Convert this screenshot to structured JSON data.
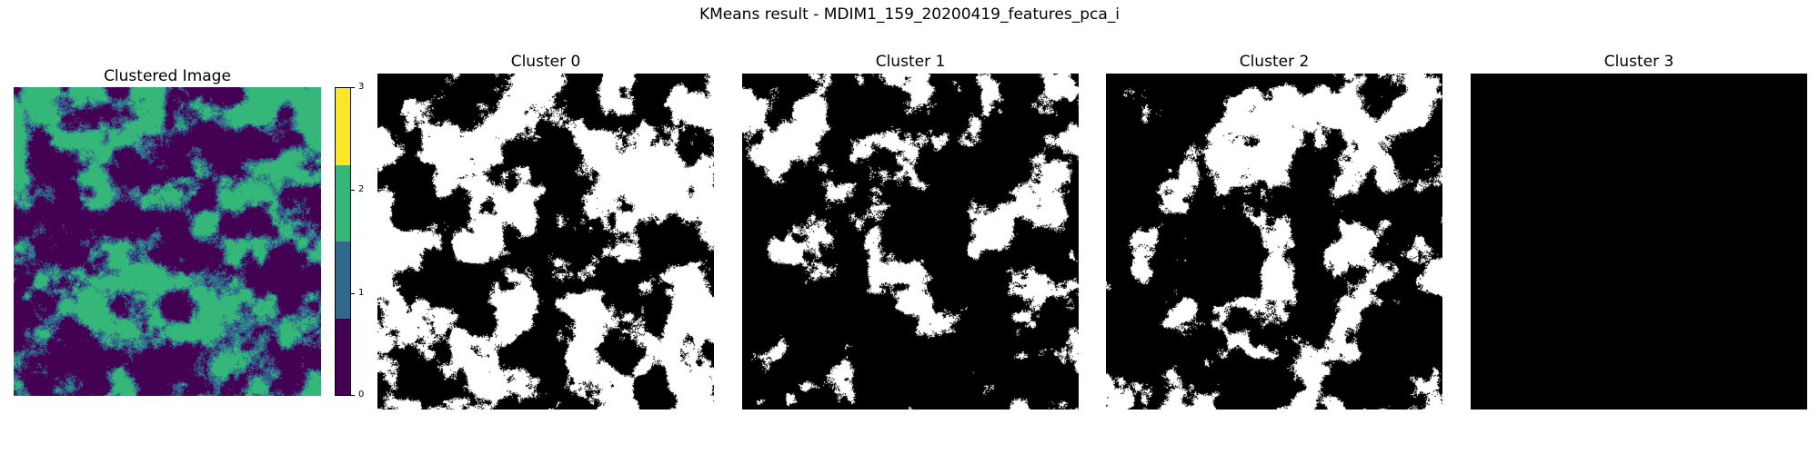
{
  "figure": {
    "suptitle": "KMeans result - MDIM1_159_20200419_features_pca_i"
  },
  "clustered_image": {
    "title": "Clustered Image",
    "colormap": [
      "#440154",
      "#31688e",
      "#35b779",
      "#fde725"
    ],
    "colorbar_ticks": [
      "0",
      "1",
      "2",
      "3"
    ]
  },
  "clusters": [
    {
      "title": "Cluster 0",
      "white_fraction": 0.48
    },
    {
      "title": "Cluster 1",
      "white_fraction": 0.22
    },
    {
      "title": "Cluster 2",
      "white_fraction": 0.3
    },
    {
      "title": "Cluster 3",
      "white_fraction": 0.0
    }
  ]
}
